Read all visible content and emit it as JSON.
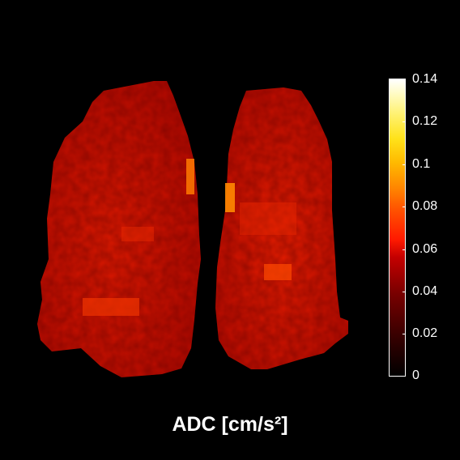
{
  "figure": {
    "xlabel": "ADC [cm/s²]",
    "colorbar": {
      "ticks": [
        "0.14",
        "0.12",
        "0.1",
        "0.08",
        "0.06",
        "0.04",
        "0.02",
        "0"
      ],
      "range": [
        0,
        0.14
      ],
      "colormap": "hot"
    },
    "colors": {
      "background": "#000000",
      "tissue_base": "#c80a00",
      "tissue_bright": "#ff3a00",
      "tissue_dark": "#6a0000"
    }
  }
}
